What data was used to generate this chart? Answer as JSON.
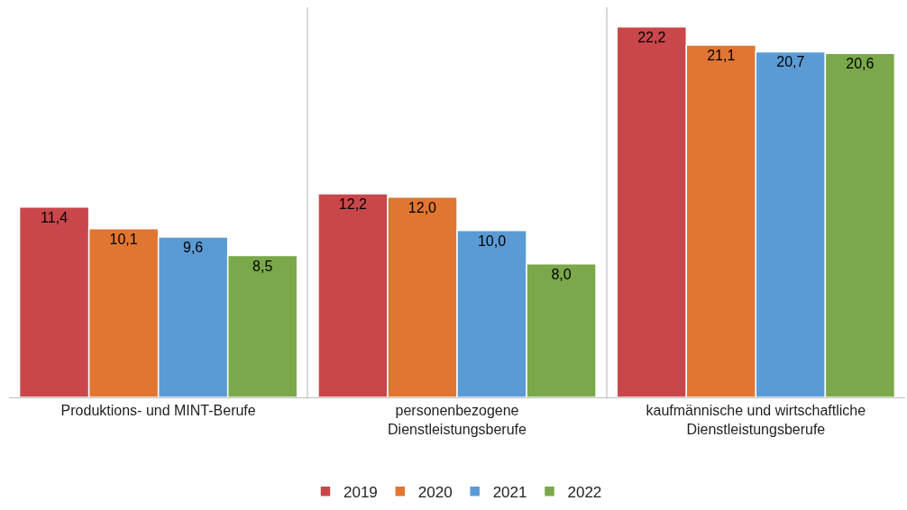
{
  "chart_data": {
    "type": "bar",
    "categories": [
      "Produktions- und MINT-Berufe",
      "personenbezogene\nDienstleistungsberufe",
      "kaufmännische und wirtschaftliche\nDienstleistungsberufe"
    ],
    "series": [
      {
        "name": "2019",
        "color": "#c9474b",
        "values": [
          11.4,
          12.2,
          22.2
        ],
        "value_labels": [
          "11,4",
          "12,2",
          "22,2"
        ]
      },
      {
        "name": "2020",
        "color": "#e07632",
        "values": [
          10.1,
          12.0,
          21.1
        ],
        "value_labels": [
          "10,1",
          "12,0",
          "21,1"
        ]
      },
      {
        "name": "2021",
        "color": "#5b9bd5",
        "values": [
          9.6,
          10.0,
          20.7
        ],
        "value_labels": [
          "9,6",
          "10,0",
          "20,7"
        ]
      },
      {
        "name": "2022",
        "color": "#7aa84a",
        "values": [
          8.5,
          8.0,
          20.6
        ],
        "value_labels": [
          "8,5",
          "8,0",
          "20,6"
        ]
      }
    ],
    "grid": "x",
    "legend": "bottom",
    "tick_labels": "x"
  }
}
